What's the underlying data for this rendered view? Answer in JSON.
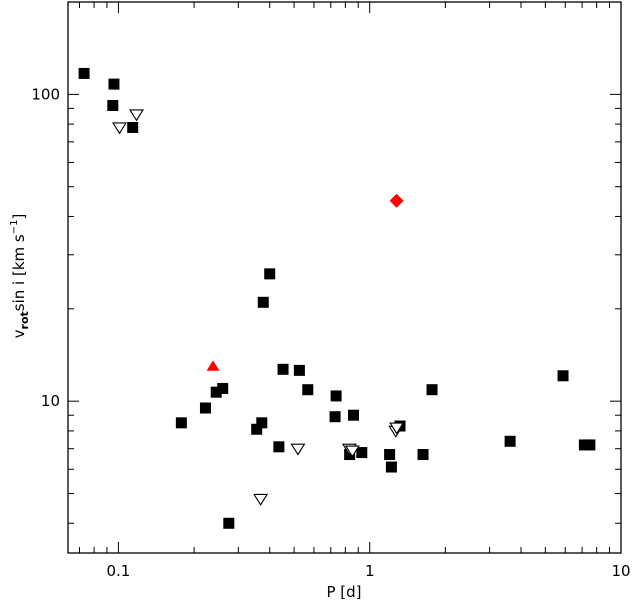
{
  "chart_data": {
    "type": "scatter",
    "title": "",
    "xlabel": "P [d]",
    "ylabel": "v_rot sin i [km s^-1]",
    "ylabel_parts": {
      "v": "v",
      "sub": "rot",
      "rest": "sin i  [km s",
      "sup": "−1",
      "close": "]"
    },
    "x_scale": "log",
    "y_scale": "log",
    "xlim": [
      0.063,
      10
    ],
    "ylim": [
      3.2,
      200
    ],
    "x_ticks": [
      {
        "value": 0.1,
        "label": "0.1"
      },
      {
        "value": 1,
        "label": "1"
      },
      {
        "value": 10,
        "label": "10"
      }
    ],
    "y_ticks": [
      {
        "value": 10,
        "label": "10"
      },
      {
        "value": 100,
        "label": "100"
      }
    ],
    "grid": false,
    "legend": "none",
    "series": [
      {
        "marker": "square-filled",
        "color": "#000000",
        "points": [
          [
            0.073,
            117
          ],
          [
            0.096,
            108
          ],
          [
            0.095,
            92
          ],
          [
            0.114,
            78
          ],
          [
            0.178,
            8.5
          ],
          [
            0.222,
            9.5
          ],
          [
            0.245,
            10.7
          ],
          [
            0.26,
            11.0
          ],
          [
            0.275,
            4.0
          ],
          [
            0.355,
            8.1
          ],
          [
            0.372,
            8.5
          ],
          [
            0.377,
            21
          ],
          [
            0.4,
            26
          ],
          [
            0.435,
            7.1
          ],
          [
            0.452,
            12.7
          ],
          [
            0.525,
            12.6
          ],
          [
            0.567,
            10.9
          ],
          [
            0.728,
            8.9
          ],
          [
            0.735,
            10.4
          ],
          [
            0.832,
            6.7
          ],
          [
            0.862,
            9.0
          ],
          [
            0.93,
            6.8
          ],
          [
            1.2,
            6.7
          ],
          [
            1.22,
            6.1
          ],
          [
            1.32,
            8.3
          ],
          [
            1.63,
            6.7
          ],
          [
            1.77,
            10.9
          ],
          [
            3.62,
            7.4
          ],
          [
            5.88,
            12.1
          ],
          [
            7.15,
            7.2
          ],
          [
            7.52,
            7.2
          ]
        ]
      },
      {
        "marker": "triangle-down-open",
        "color": "#000000",
        "points": [
          [
            0.101,
            78
          ],
          [
            0.118,
            86
          ],
          [
            0.368,
            4.8
          ],
          [
            0.518,
            7.0
          ],
          [
            0.83,
            7.0
          ],
          [
            0.853,
            6.9
          ],
          [
            1.27,
            8.0
          ],
          [
            1.28,
            8.2
          ]
        ]
      },
      {
        "marker": "triangle-up-filled",
        "color": "#ff0000",
        "points": [
          [
            0.238,
            13.0
          ]
        ]
      },
      {
        "marker": "diamond-filled",
        "color": "#ff0000",
        "points": [
          [
            1.28,
            45
          ]
        ]
      }
    ]
  }
}
